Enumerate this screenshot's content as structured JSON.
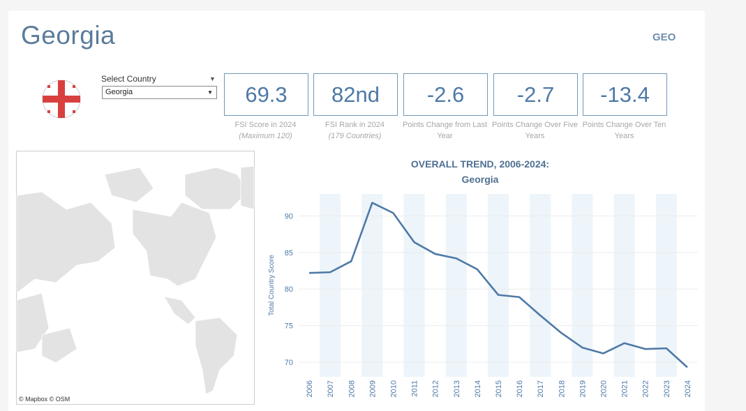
{
  "header": {
    "title": "Georgia",
    "code": "GEO"
  },
  "selector": {
    "label": "Select Country",
    "value": "Georgia"
  },
  "kpis": [
    {
      "value": 69.3,
      "caption": "FSI Score in 2024",
      "note": "(Maximum 120)"
    },
    {
      "value": "82nd",
      "caption": "FSI Rank in 2024",
      "note": "(179 Countries)"
    },
    {
      "value": -2.6,
      "caption": "Points Change from Last Year"
    },
    {
      "value": -2.7,
      "caption": "Points Change Over Five Years"
    },
    {
      "value": -13.4,
      "caption": "Points Change Over Ten Years"
    }
  ],
  "map": {
    "attribution": "© Mapbox © OSM"
  },
  "chart_data": {
    "type": "line",
    "title": "OVERALL TREND, 2006-2024:",
    "subtitle": "Georgia",
    "y_label": "Total Country Score",
    "categories": [
      "2006",
      "2007",
      "2008",
      "2009",
      "2010",
      "2011",
      "2012",
      "2013",
      "2014",
      "2015",
      "2016",
      "2017",
      "2018",
      "2019",
      "2020",
      "2021",
      "2022",
      "2023",
      "2024"
    ],
    "values": [
      82.2,
      82.3,
      83.8,
      91.8,
      90.4,
      86.4,
      84.8,
      84.2,
      82.7,
      79.2,
      78.9,
      76.4,
      74.0,
      72.0,
      71.2,
      72.6,
      71.8,
      71.9,
      69.3
    ],
    "color": "#4e79a7",
    "ylim": [
      68,
      93
    ],
    "yticks": [
      70,
      75,
      80,
      85,
      90
    ],
    "grid": true,
    "alternate_bands": true,
    "band_color": "#edf5fa"
  }
}
